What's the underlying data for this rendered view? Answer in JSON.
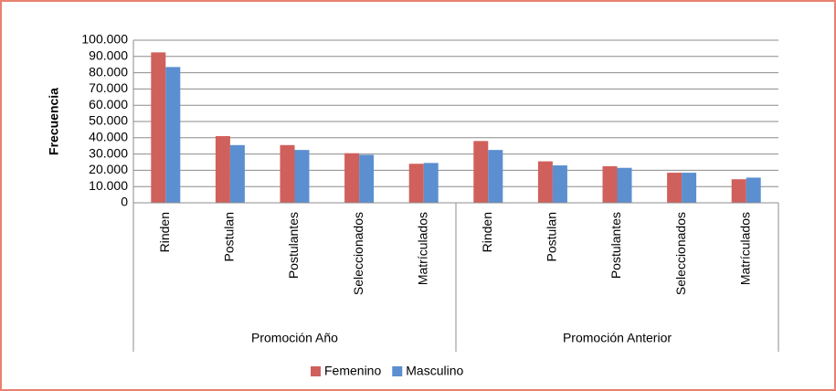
{
  "chart_data": {
    "type": "bar",
    "y_label": "Frecuencia",
    "categories": [
      "Rinden",
      "Postulan",
      "Postulantes",
      "Seleccionados",
      "Matrículados",
      "Rinden",
      "Postulan",
      "Postulantes",
      "Seleccionados",
      "Matrículados"
    ],
    "category_groups": [
      "Promoción Año",
      "Promoción Anterior"
    ],
    "series": [
      {
        "name": "Femenino",
        "color": "#d0605b",
        "values": [
          92500,
          41000,
          35500,
          30500,
          24000,
          38000,
          25500,
          22500,
          18500,
          14500
        ]
      },
      {
        "name": "Masculino",
        "color": "#5b8fd0",
        "values": [
          83500,
          35500,
          32500,
          29500,
          24500,
          32500,
          23000,
          21500,
          18500,
          15500
        ]
      }
    ],
    "ylim": [
      0,
      100000
    ],
    "yticks": [
      0,
      {
        "value": 10000,
        "label": "10.000"
      },
      {
        "value": 20000,
        "label": "20.000"
      },
      {
        "value": 30000,
        "label": "30.000"
      },
      {
        "value": 40000,
        "label": "40.000"
      },
      {
        "value": 50000,
        "label": "50.000"
      },
      {
        "value": 60000,
        "label": "60.000"
      },
      {
        "value": 70000,
        "label": "70.000"
      },
      {
        "value": 80000,
        "label": "80.000"
      },
      {
        "value": 90000,
        "label": "90.000"
      },
      {
        "value": 100000,
        "label": "100.000"
      }
    ],
    "grid": true,
    "legend": "bottom"
  }
}
